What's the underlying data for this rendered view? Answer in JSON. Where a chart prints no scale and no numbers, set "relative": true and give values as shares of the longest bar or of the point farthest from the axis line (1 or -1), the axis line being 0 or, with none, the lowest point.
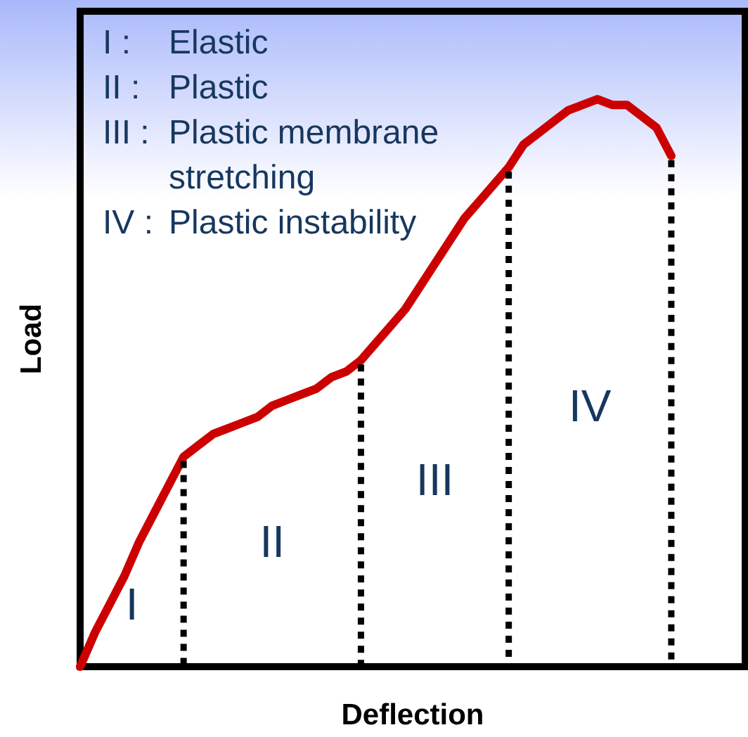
{
  "chart_data": {
    "type": "line",
    "relative": true,
    "xlabel": "Deflection",
    "ylabel": "Load",
    "marker": "none",
    "line_style": "solid",
    "grid": false,
    "tick_labels": false,
    "categories": [
      null,
      null,
      null,
      null,
      null,
      null,
      null,
      null,
      null,
      null,
      null,
      null,
      null,
      null,
      null,
      null,
      null,
      null,
      null,
      null,
      null,
      null,
      null,
      null,
      null,
      null,
      null,
      null,
      null,
      null,
      null,
      null,
      null,
      null,
      null,
      null,
      null,
      null,
      null,
      null,
      null,
      null,
      null,
      null,
      null,
      null
    ],
    "series": [
      {
        "color": "#cc0000",
        "values": [
          0,
          0.06,
          0.11,
          0.16,
          0.22,
          0.27,
          0.32,
          0.37,
          0.39,
          0.41,
          0.42,
          0.43,
          0.44,
          0.46,
          0.47,
          0.48,
          0.49,
          0.51,
          0.52,
          0.54,
          0.57,
          0.6,
          0.63,
          0.67,
          0.71,
          0.75,
          0.79,
          0.82,
          0.85,
          0.88,
          0.92,
          0.94,
          0.96,
          0.98,
          0.99,
          1,
          0.99,
          0.99,
          0.97,
          0.95,
          0.9,
          null,
          null,
          null,
          null,
          null
        ]
      }
    ],
    "annotations": [
      "I :   Elastic",
      "II :  Plastic",
      "III : Plastic membrane stretching",
      "IV : Plastic instability",
      {
        "text": "I"
      },
      {
        "text": "II"
      },
      {
        "text": "III"
      },
      {
        "text": "IV"
      }
    ]
  }
}
